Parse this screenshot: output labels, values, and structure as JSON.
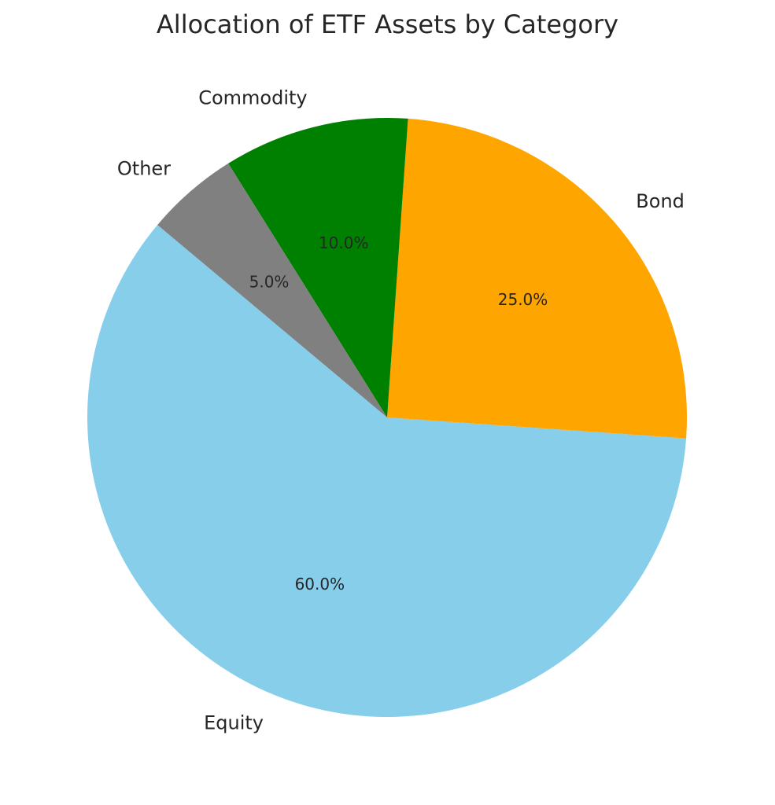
{
  "chart_data": {
    "type": "pie",
    "title": "Allocation of ETF Assets by Category",
    "categories": [
      "Equity",
      "Bond",
      "Commodity",
      "Other"
    ],
    "values": [
      60.0,
      25.0,
      10.0,
      5.0
    ],
    "percent_labels": [
      "60.0%",
      "25.0%",
      "10.0%",
      "5.0%"
    ],
    "colors": [
      "#87CEEB",
      "#FFA500",
      "#008000",
      "#808080"
    ],
    "start_angle_deg": 140,
    "direction": "counterclockwise",
    "legend": "none"
  }
}
